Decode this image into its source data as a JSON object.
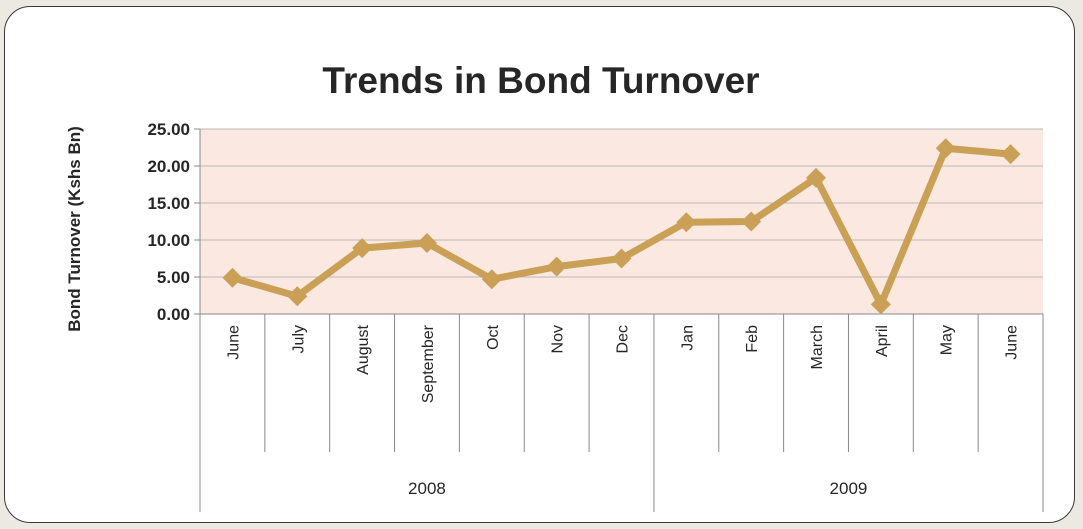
{
  "chart_data": {
    "type": "line",
    "title": "Trends in Bond Turnover",
    "ylabel": "Bond Turnover (Kshs Bn)",
    "xlabel": "",
    "ylim": [
      0,
      25
    ],
    "yticks": [
      "0.00",
      "5.00",
      "10.00",
      "15.00",
      "20.00",
      "25.00"
    ],
    "categories": [
      "June",
      "July",
      "August",
      "September",
      "Oct",
      "Nov",
      "Dec",
      "Jan",
      "Feb",
      "March",
      "April",
      "May",
      "June"
    ],
    "groups": [
      {
        "label": "2008",
        "start": 0,
        "end": 6
      },
      {
        "label": "2009",
        "start": 7,
        "end": 12
      }
    ],
    "series": [
      {
        "values": [
          4.9,
          2.4,
          8.9,
          9.6,
          4.7,
          6.4,
          7.5,
          12.4,
          12.5,
          18.4,
          1.3,
          22.4,
          21.6
        ]
      }
    ],
    "grid": true,
    "legend": "none",
    "colors": {
      "line": "#c9a055",
      "plot_bg": "#fbe9e1",
      "grid": "#b8b8b8"
    }
  }
}
